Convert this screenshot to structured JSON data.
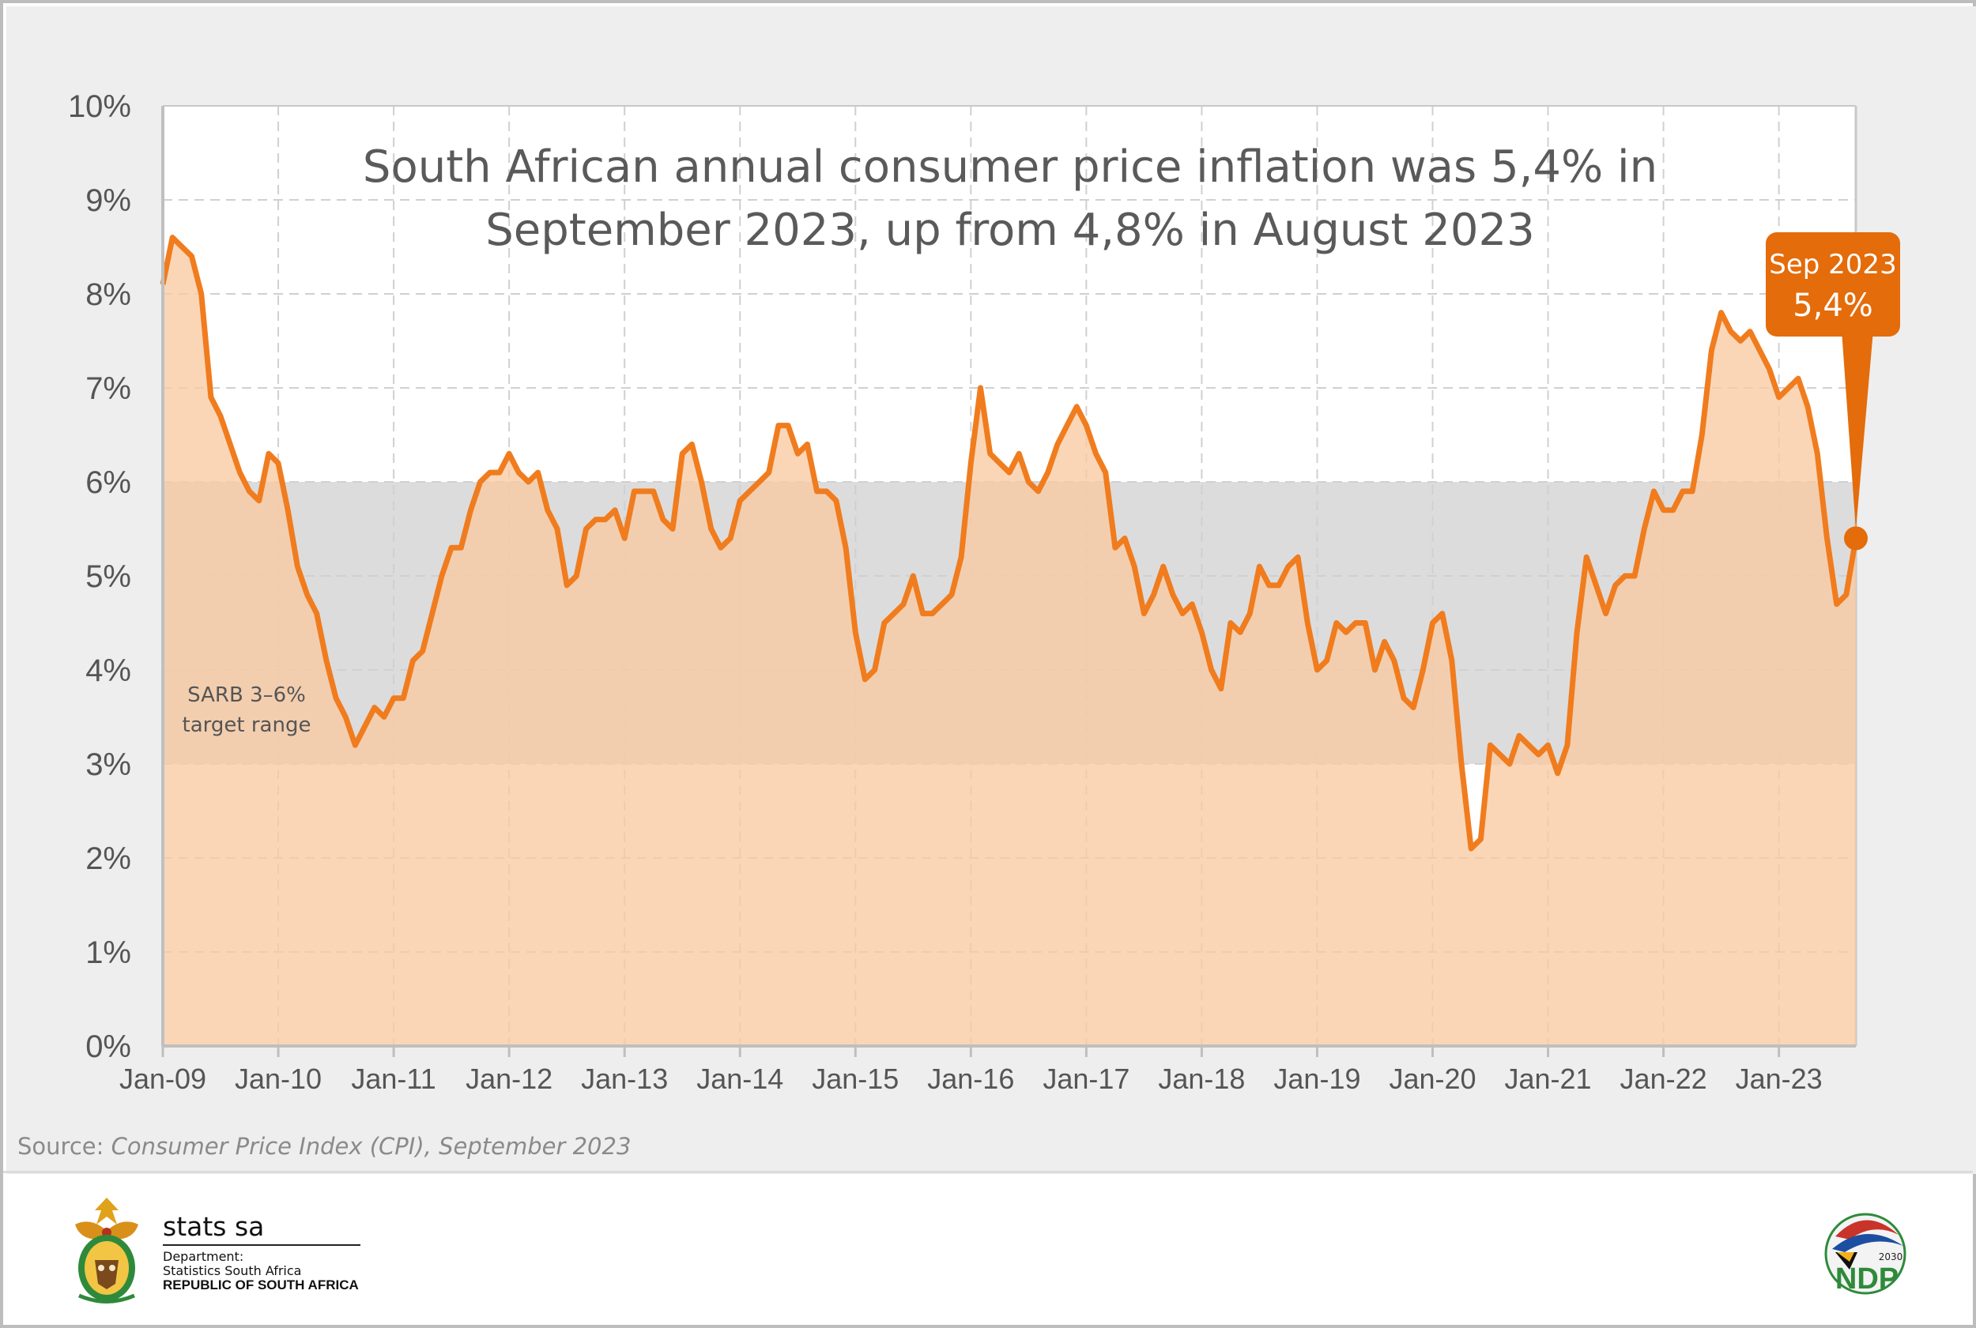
{
  "footer": {
    "source_prefix": "Source: ",
    "source_title": "Consumer Price Index (CPI), September 2023",
    "org_name": "stats sa",
    "dept_line1": "Department:",
    "dept_line2": "Statistics South Africa",
    "dept_line3": "REPUBLIC OF SOUTH AFRICA",
    "ndp_text": "NDP",
    "ndp_year": "2030"
  },
  "colors": {
    "line": "#f07c1e",
    "area": "#f9cba3",
    "band": "#dcdcdc",
    "callout": "#e46c0a",
    "plot_bg": "#ffffff",
    "panel_bg": "#eeeeee",
    "grid": "#d0d0d0"
  },
  "chart_data": {
    "type": "area",
    "title": "South African annual consumer price inflation was 5,4% in September 2023, up from 4,8% in August 2023",
    "title_lines": [
      "South African annual consumer price inflation was 5,4% in",
      "September 2023, up from 4,8% in August 2023"
    ],
    "xlabel": "",
    "ylabel": "",
    "x_start": "Jan-09",
    "x_end": "Sep-23",
    "ylim": [
      0,
      10
    ],
    "y_ticks": [
      "0%",
      "1%",
      "2%",
      "3%",
      "4%",
      "5%",
      "6%",
      "7%",
      "8%",
      "9%",
      "10%"
    ],
    "x_ticks": [
      "Jan-09",
      "Jan-10",
      "Jan-11",
      "Jan-12",
      "Jan-13",
      "Jan-14",
      "Jan-15",
      "Jan-16",
      "Jan-17",
      "Jan-18",
      "Jan-19",
      "Jan-20",
      "Jan-21",
      "Jan-22",
      "Jan-23"
    ],
    "grid": true,
    "band": {
      "from": 3,
      "to": 6,
      "label_lines": [
        "SARB 3–6%",
        "target range"
      ]
    },
    "callout": {
      "line1": "Sep 2023",
      "line2": "5,4%",
      "value": 5.4
    },
    "series": [
      {
        "values": [
          8.1,
          8.6,
          8.5,
          8.4,
          8.0,
          6.9,
          6.7,
          6.4,
          6.1,
          5.9,
          5.8,
          6.3,
          6.2,
          5.7,
          5.1,
          4.8,
          4.6,
          4.1,
          3.7,
          3.5,
          3.2,
          3.4,
          3.6,
          3.5,
          3.7,
          3.7,
          4.1,
          4.2,
          4.6,
          5.0,
          5.3,
          5.3,
          5.7,
          6.0,
          6.1,
          6.1,
          6.3,
          6.1,
          6.0,
          6.1,
          5.7,
          5.5,
          4.9,
          5.0,
          5.5,
          5.6,
          5.6,
          5.7,
          5.4,
          5.9,
          5.9,
          5.9,
          5.6,
          5.5,
          6.3,
          6.4,
          6.0,
          5.5,
          5.3,
          5.4,
          5.8,
          5.9,
          6.0,
          6.1,
          6.6,
          6.6,
          6.3,
          6.4,
          5.9,
          5.9,
          5.8,
          5.3,
          4.4,
          3.9,
          4.0,
          4.5,
          4.6,
          4.7,
          5.0,
          4.6,
          4.6,
          4.7,
          4.8,
          5.2,
          6.2,
          7.0,
          6.3,
          6.2,
          6.1,
          6.3,
          6.0,
          5.9,
          6.1,
          6.4,
          6.6,
          6.8,
          6.6,
          6.3,
          6.1,
          5.3,
          5.4,
          5.1,
          4.6,
          4.8,
          5.1,
          4.8,
          4.6,
          4.7,
          4.4,
          4.0,
          3.8,
          4.5,
          4.4,
          4.6,
          5.1,
          4.9,
          4.9,
          5.1,
          5.2,
          4.5,
          4.0,
          4.1,
          4.5,
          4.4,
          4.5,
          4.5,
          4.0,
          4.3,
          4.1,
          3.7,
          3.6,
          4.0,
          4.5,
          4.6,
          4.1,
          3.0,
          2.1,
          2.2,
          3.2,
          3.1,
          3.0,
          3.3,
          3.2,
          3.1,
          3.2,
          2.9,
          3.2,
          4.4,
          5.2,
          4.9,
          4.6,
          4.9,
          5.0,
          5.0,
          5.5,
          5.9,
          5.7,
          5.7,
          5.9,
          5.9,
          6.5,
          7.4,
          7.8,
          7.6,
          7.5,
          7.6,
          7.4,
          7.2,
          6.9,
          7.0,
          7.1,
          6.8,
          6.3,
          5.4,
          4.7,
          4.8,
          5.4
        ]
      }
    ]
  }
}
